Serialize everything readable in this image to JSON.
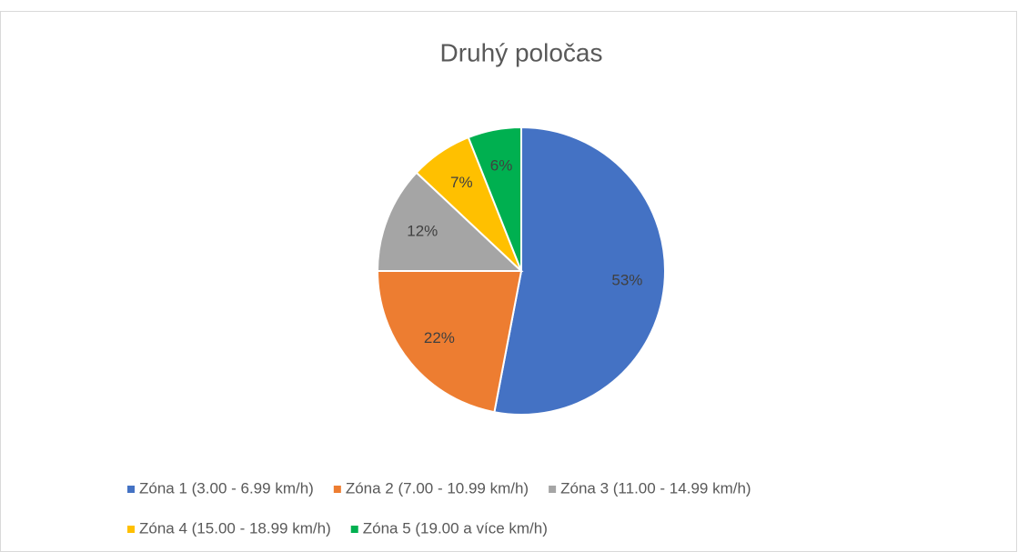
{
  "chart_data": {
    "type": "pie",
    "title": "Druhý poločas",
    "categories": [
      "Zóna 1 (3.00 - 6.99 km/h)",
      "Zóna 2 (7.00 - 10.99 km/h)",
      "Zóna 3 (11.00 - 14.99 km/h)",
      "Zóna 4 (15.00 - 18.99 km/h)",
      "Zóna 5 (19.00 a více km/h)"
    ],
    "values": [
      53,
      22,
      12,
      7,
      6
    ],
    "value_labels": [
      "53%",
      "22%",
      "12%",
      "7%",
      "6%"
    ],
    "colors": [
      "#4472c4",
      "#ed7d31",
      "#a5a5a5",
      "#ffc000",
      "#00b050"
    ],
    "legend": "bottom"
  }
}
